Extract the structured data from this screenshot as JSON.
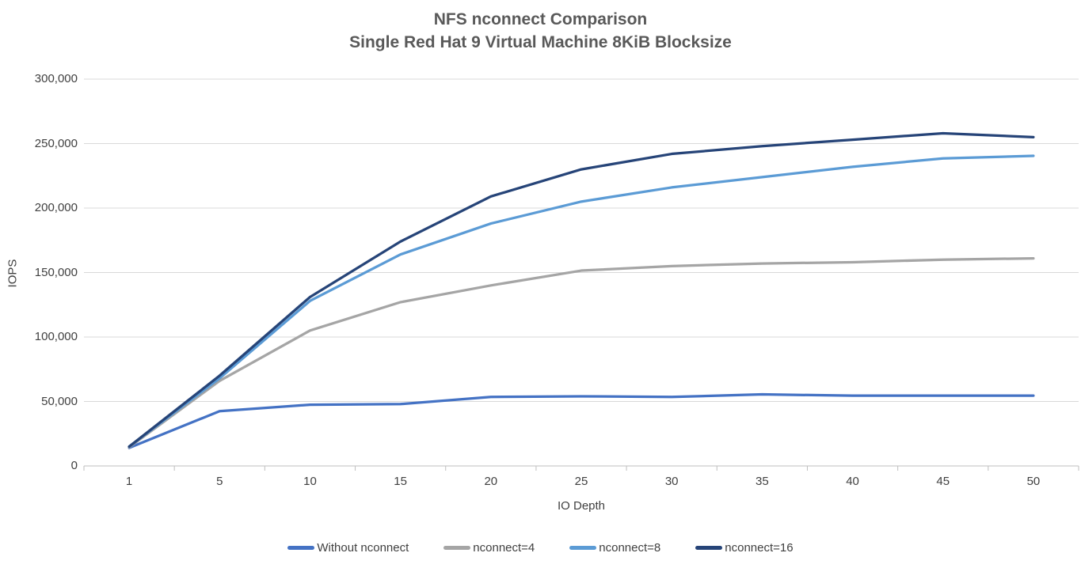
{
  "page": {
    "background": "#FFFFFF"
  },
  "chart_data": {
    "type": "line",
    "title": "NFS nconnect Comparison",
    "subtitle": "Single Red Hat 9 Virtual Machine 8KiB Blocksize",
    "xlabel": "IO Depth",
    "ylabel": "IOPS",
    "ylim": [
      0,
      300000
    ],
    "ytick_values": [
      0,
      50000,
      100000,
      150000,
      200000,
      250000,
      300000
    ],
    "ytick_labels": [
      "0",
      "50,000",
      "100,000",
      "150,000",
      "200,000",
      "250,000",
      "300,000"
    ],
    "categories": [
      "1",
      "5",
      "10",
      "15",
      "20",
      "25",
      "30",
      "35",
      "40",
      "45",
      "50"
    ],
    "grid": true,
    "legend_position": "bottom",
    "colors": {
      "gridline": "#D9D9D9",
      "axis": "#BFBFBF",
      "title_text": "#595959",
      "label_text": "#404040"
    },
    "series": [
      {
        "name": "Without nconnect",
        "color": "#4472C4",
        "values": [
          14000,
          42500,
          47500,
          48000,
          53500,
          54000,
          53500,
          55500,
          54500,
          54500,
          54500
        ]
      },
      {
        "name": "nconnect=4",
        "color": "#A5A5A5",
        "values": [
          14500,
          66000,
          105000,
          127000,
          140000,
          151500,
          155000,
          157000,
          158000,
          160000,
          161000
        ]
      },
      {
        "name": "nconnect=8",
        "color": "#5B9BD5",
        "values": [
          15000,
          68000,
          128000,
          164000,
          188000,
          205000,
          216000,
          224000,
          232000,
          238500,
          240500
        ]
      },
      {
        "name": "nconnect=16",
        "color": "#264478",
        "values": [
          15000,
          70000,
          131000,
          174000,
          209000,
          230000,
          242000,
          248000,
          253000,
          258000,
          255000
        ]
      }
    ]
  }
}
